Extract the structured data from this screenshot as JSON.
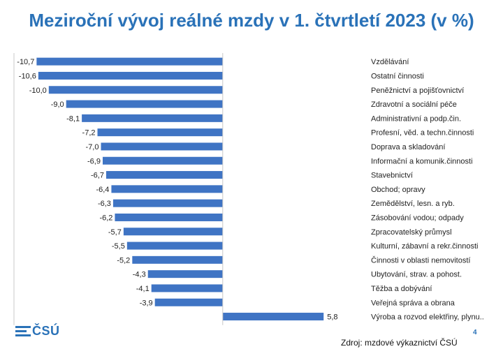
{
  "chart_data": {
    "type": "bar",
    "orientation": "horizontal",
    "title": "Meziroční vývoj reálné mzdy v 1. čtvrtletí 2023 (v %)",
    "categories": [
      "Vzdělávání",
      "Ostatní činnosti",
      "Peněžnictví a pojišťovnictví",
      "Zdravotní a sociální péče",
      "Administrativní a podp.čin.",
      "Profesní, věd. a techn.činnosti",
      "Doprava a skladování",
      "Informační a komunik.činnosti",
      "Stavebnictví",
      "Obchod; opravy",
      "Zemědělství, lesn. a ryb.",
      "Zásobování vodou; odpady",
      "Zpracovatelský průmysl",
      "Kulturní, zábavní a rekr.činnosti",
      "Činnosti v oblasti nemovitostí",
      "Ubytování, strav. a pohost.",
      "Těžba a dobývání",
      "Veřejná správa a obrana",
      "Výroba a rozvod elektřiny, plynu.."
    ],
    "values": [
      -10.7,
      -10.6,
      -10.0,
      -9.0,
      -8.1,
      -7.2,
      -7.0,
      -6.9,
      -6.7,
      -6.4,
      -6.3,
      -6.2,
      -5.7,
      -5.5,
      -5.2,
      -4.3,
      -4.1,
      -3.9,
      5.8
    ],
    "value_labels": [
      "-10,7",
      "-10,6",
      "-10,0",
      "-9,0",
      "-8,1",
      "-7,2",
      "-7,0",
      "-6,9",
      "-6,7",
      "-6,4",
      "-6,3",
      "-6,2",
      "-5,7",
      "-5,5",
      "-5,2",
      "-4,3",
      "-4,1",
      "-3,9",
      "5,8"
    ],
    "xlim": [
      -12,
      8
    ],
    "xlabel": "",
    "ylabel": "",
    "grid": false,
    "colors": {
      "bar": "#3f74c4",
      "axis": "#c8c8c8"
    }
  },
  "logo": {
    "text": "ČSÚ"
  },
  "footer": {
    "page_number": "4",
    "source": "Zdroj: mzdové výkaznictví ČSÚ"
  }
}
